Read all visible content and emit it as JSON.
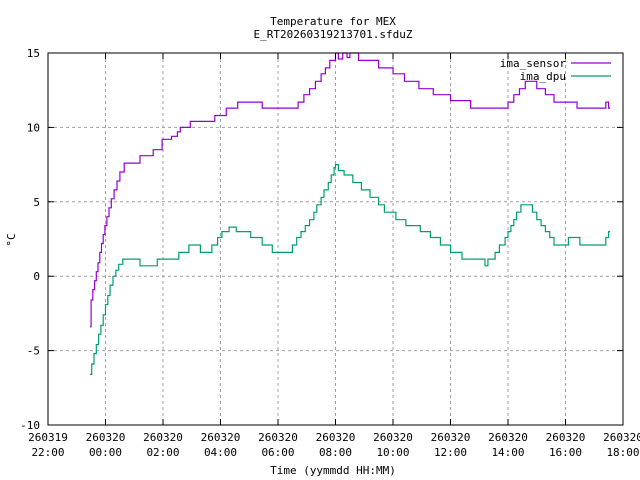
{
  "chart_data": {
    "type": "line",
    "title": "Temperature for MEX",
    "subtitle": "E_RT20260319213701.sfduZ",
    "xlabel": "Time (yymmdd HH:MM)",
    "ylabel": "°C",
    "ylim": [
      -10,
      15
    ],
    "xlim_hours_from_start": [
      0,
      20
    ],
    "grid": true,
    "legend_position": "top-right",
    "y_ticks": [
      "-10",
      "-5",
      "0",
      "5",
      "10",
      "15"
    ],
    "x_ticks": [
      {
        "date": "260319",
        "time": "22:00"
      },
      {
        "date": "260320",
        "time": "00:00"
      },
      {
        "date": "260320",
        "time": "02:00"
      },
      {
        "date": "260320",
        "time": "04:00"
      },
      {
        "date": "260320",
        "time": "06:00"
      },
      {
        "date": "260320",
        "time": "08:00"
      },
      {
        "date": "260320",
        "time": "10:00"
      },
      {
        "date": "260320",
        "time": "12:00"
      },
      {
        "date": "260320",
        "time": "14:00"
      },
      {
        "date": "260320",
        "time": "16:00"
      },
      {
        "date": "260320",
        "time": "18:00"
      }
    ],
    "series": [
      {
        "name": "ima_sensor",
        "color": "#9400d3",
        "points": [
          [
            1.46,
            -3.4
          ],
          [
            1.5,
            -1.6
          ],
          [
            1.56,
            -0.9
          ],
          [
            1.62,
            -0.3
          ],
          [
            1.68,
            0.3
          ],
          [
            1.74,
            0.9
          ],
          [
            1.8,
            1.6
          ],
          [
            1.86,
            2.2
          ],
          [
            1.92,
            2.8
          ],
          [
            1.98,
            3.4
          ],
          [
            2.05,
            4.0
          ],
          [
            2.12,
            4.6
          ],
          [
            2.2,
            5.2
          ],
          [
            2.3,
            5.8
          ],
          [
            2.4,
            6.4
          ],
          [
            2.5,
            7.0
          ],
          [
            2.65,
            7.6
          ],
          [
            3.2,
            8.1
          ],
          [
            3.66,
            8.5
          ],
          [
            3.97,
            9.2
          ],
          [
            4.3,
            9.4
          ],
          [
            4.5,
            9.7
          ],
          [
            4.6,
            10.0
          ],
          [
            4.95,
            10.4
          ],
          [
            5.8,
            10.8
          ],
          [
            6.2,
            11.3
          ],
          [
            6.6,
            11.7
          ],
          [
            7.45,
            11.3
          ],
          [
            8.7,
            11.7
          ],
          [
            8.9,
            12.2
          ],
          [
            9.1,
            12.6
          ],
          [
            9.3,
            13.1
          ],
          [
            9.5,
            13.6
          ],
          [
            9.65,
            14.0
          ],
          [
            9.8,
            14.5
          ],
          [
            10.0,
            15.0
          ],
          [
            10.1,
            14.6
          ],
          [
            10.25,
            15.0
          ],
          [
            10.4,
            14.7
          ],
          [
            10.5,
            15.0
          ],
          [
            10.8,
            14.5
          ],
          [
            11.5,
            14.0
          ],
          [
            12.0,
            13.6
          ],
          [
            12.4,
            13.1
          ],
          [
            12.9,
            12.6
          ],
          [
            13.4,
            12.2
          ],
          [
            14.0,
            11.8
          ],
          [
            14.7,
            11.3
          ],
          [
            16.0,
            11.7
          ],
          [
            16.2,
            12.2
          ],
          [
            16.4,
            12.6
          ],
          [
            16.6,
            13.1
          ],
          [
            17.0,
            12.6
          ],
          [
            17.3,
            12.2
          ],
          [
            17.6,
            11.7
          ],
          [
            18.4,
            11.3
          ],
          [
            19.4,
            11.7
          ],
          [
            19.5,
            11.3
          ],
          [
            19.55,
            11.3
          ]
        ]
      },
      {
        "name": "ima_dpu",
        "color": "#009e73",
        "points": [
          [
            1.46,
            -6.6
          ],
          [
            1.52,
            -5.9
          ],
          [
            1.6,
            -5.2
          ],
          [
            1.68,
            -4.6
          ],
          [
            1.76,
            -3.9
          ],
          [
            1.84,
            -3.3
          ],
          [
            1.92,
            -2.6
          ],
          [
            2.0,
            -1.9
          ],
          [
            2.08,
            -1.3
          ],
          [
            2.16,
            -0.6
          ],
          [
            2.26,
            0.0
          ],
          [
            2.36,
            0.4
          ],
          [
            2.46,
            0.8
          ],
          [
            2.6,
            1.15
          ],
          [
            3.2,
            0.7
          ],
          [
            3.8,
            1.15
          ],
          [
            4.55,
            1.6
          ],
          [
            4.9,
            2.1
          ],
          [
            5.3,
            1.6
          ],
          [
            5.7,
            2.1
          ],
          [
            5.9,
            2.6
          ],
          [
            6.05,
            3.0
          ],
          [
            6.3,
            3.3
          ],
          [
            6.55,
            3.0
          ],
          [
            7.05,
            2.6
          ],
          [
            7.45,
            2.1
          ],
          [
            7.8,
            1.6
          ],
          [
            8.5,
            2.1
          ],
          [
            8.65,
            2.6
          ],
          [
            8.8,
            3.0
          ],
          [
            8.95,
            3.4
          ],
          [
            9.1,
            3.8
          ],
          [
            9.25,
            4.3
          ],
          [
            9.35,
            4.8
          ],
          [
            9.5,
            5.3
          ],
          [
            9.6,
            5.8
          ],
          [
            9.75,
            6.3
          ],
          [
            9.85,
            6.8
          ],
          [
            9.95,
            7.3
          ],
          [
            10.0,
            7.5
          ],
          [
            10.1,
            7.1
          ],
          [
            10.3,
            6.8
          ],
          [
            10.6,
            6.3
          ],
          [
            10.9,
            5.8
          ],
          [
            11.2,
            5.3
          ],
          [
            11.5,
            4.8
          ],
          [
            11.7,
            4.3
          ],
          [
            12.1,
            3.8
          ],
          [
            12.45,
            3.4
          ],
          [
            12.95,
            3.0
          ],
          [
            13.3,
            2.6
          ],
          [
            13.65,
            2.1
          ],
          [
            14.0,
            1.6
          ],
          [
            14.4,
            1.15
          ],
          [
            15.2,
            0.7
          ],
          [
            15.3,
            1.15
          ],
          [
            15.55,
            1.6
          ],
          [
            15.7,
            2.1
          ],
          [
            15.9,
            2.6
          ],
          [
            16.0,
            3.0
          ],
          [
            16.1,
            3.4
          ],
          [
            16.2,
            3.8
          ],
          [
            16.3,
            4.3
          ],
          [
            16.45,
            4.8
          ],
          [
            16.85,
            4.3
          ],
          [
            17.0,
            3.8
          ],
          [
            17.15,
            3.4
          ],
          [
            17.3,
            3.0
          ],
          [
            17.45,
            2.6
          ],
          [
            17.6,
            2.1
          ],
          [
            18.1,
            2.6
          ],
          [
            18.5,
            2.1
          ],
          [
            19.4,
            2.6
          ],
          [
            19.5,
            3.0
          ],
          [
            19.55,
            3.0
          ]
        ]
      }
    ]
  }
}
